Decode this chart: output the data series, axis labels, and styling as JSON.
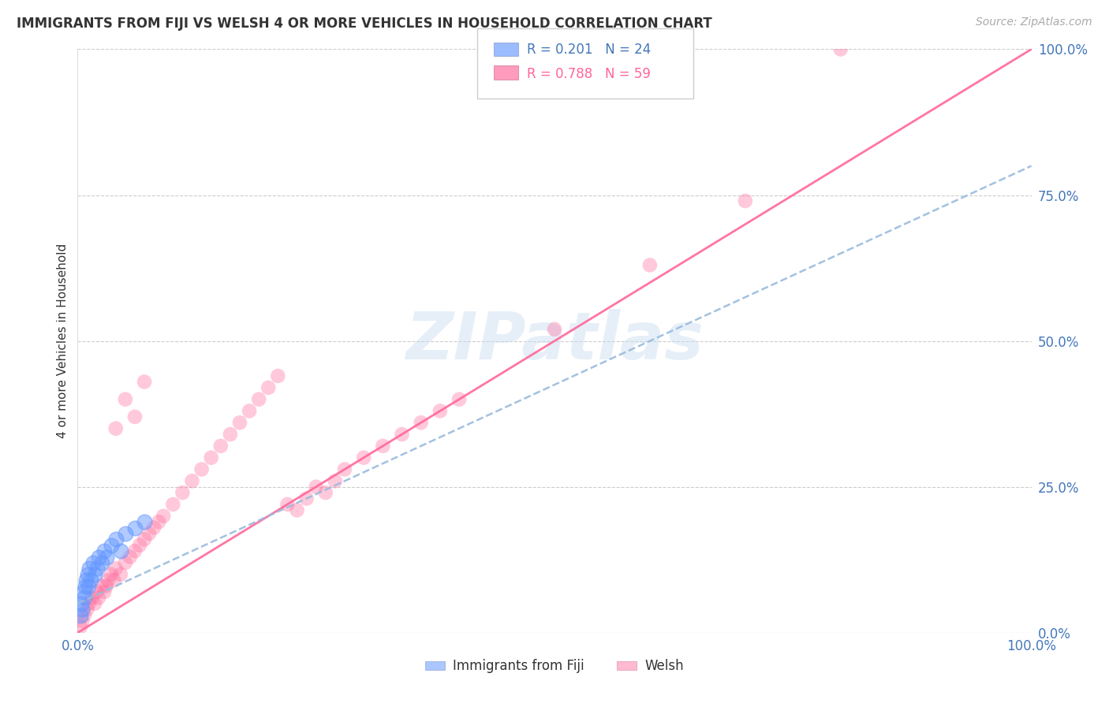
{
  "title": "IMMIGRANTS FROM FIJI VS WELSH 4 OR MORE VEHICLES IN HOUSEHOLD CORRELATION CHART",
  "source_text": "Source: ZipAtlas.com",
  "xlabel": "Immigrants from Fiji",
  "ylabel": "4 or more Vehicles in Household",
  "xlim": [
    0,
    100
  ],
  "ylim": [
    0,
    100
  ],
  "ytick_values": [
    0,
    25,
    50,
    75,
    100
  ],
  "ytick_labels": [
    "0.0%",
    "25.0%",
    "50.0%",
    "75.0%",
    "100.0%"
  ],
  "xtick_values": [
    0,
    100
  ],
  "xtick_labels": [
    "0.0%",
    "100.0%"
  ],
  "watermark": "ZIPatlas",
  "legend_r1": "R = 0.201",
  "legend_n1": "N = 24",
  "legend_r2": "R = 0.788",
  "legend_n2": "N = 59",
  "blue_color": "#6699ff",
  "pink_color": "#ff6699",
  "trend_blue_color": "#99bbdd",
  "trend_pink_color": "#ff6699",
  "grid_color": "#cccccc",
  "background_color": "#ffffff",
  "tick_color": "#4477bb",
  "legend_label1": "Immigrants from Fiji",
  "legend_label2": "Welsh",
  "blue_trend_x": [
    0,
    100
  ],
  "blue_trend_y": [
    5,
    80
  ],
  "pink_trend_x": [
    0,
    100
  ],
  "pink_trend_y": [
    0,
    100
  ],
  "blue_scatter_x": [
    0.3,
    0.4,
    0.5,
    0.6,
    0.7,
    0.8,
    0.9,
    1.0,
    1.1,
    1.2,
    1.4,
    1.6,
    1.8,
    2.0,
    2.2,
    2.5,
    2.8,
    3.0,
    3.5,
    4.0,
    4.5,
    5.0,
    6.0,
    7.0
  ],
  "blue_scatter_y": [
    3,
    5,
    4,
    7,
    6,
    8,
    9,
    10,
    8,
    11,
    9,
    12,
    10,
    11,
    13,
    12,
    14,
    13,
    15,
    16,
    14,
    17,
    18,
    19
  ],
  "pink_scatter_x": [
    0.3,
    0.5,
    0.7,
    1.0,
    1.2,
    1.5,
    1.8,
    2.0,
    2.2,
    2.5,
    2.8,
    3.0,
    3.2,
    3.5,
    3.8,
    4.0,
    4.5,
    5.0,
    5.5,
    6.0,
    6.5,
    7.0,
    7.5,
    8.0,
    8.5,
    9.0,
    10.0,
    11.0,
    12.0,
    13.0,
    14.0,
    15.0,
    16.0,
    17.0,
    18.0,
    19.0,
    20.0,
    21.0,
    22.0,
    23.0,
    24.0,
    25.0,
    26.0,
    27.0,
    28.0,
    30.0,
    32.0,
    34.0,
    36.0,
    38.0,
    40.0,
    50.0,
    60.0,
    70.0,
    80.0,
    4.0,
    5.0,
    6.0,
    7.0
  ],
  "pink_scatter_y": [
    1,
    2,
    3,
    4,
    5,
    6,
    5,
    7,
    6,
    8,
    7,
    8,
    9,
    10,
    9,
    11,
    10,
    12,
    13,
    14,
    15,
    16,
    17,
    18,
    19,
    20,
    22,
    24,
    26,
    28,
    30,
    32,
    34,
    36,
    38,
    40,
    42,
    44,
    22,
    21,
    23,
    25,
    24,
    26,
    28,
    30,
    32,
    34,
    36,
    38,
    40,
    52,
    63,
    74,
    100,
    35,
    40,
    37,
    43
  ]
}
